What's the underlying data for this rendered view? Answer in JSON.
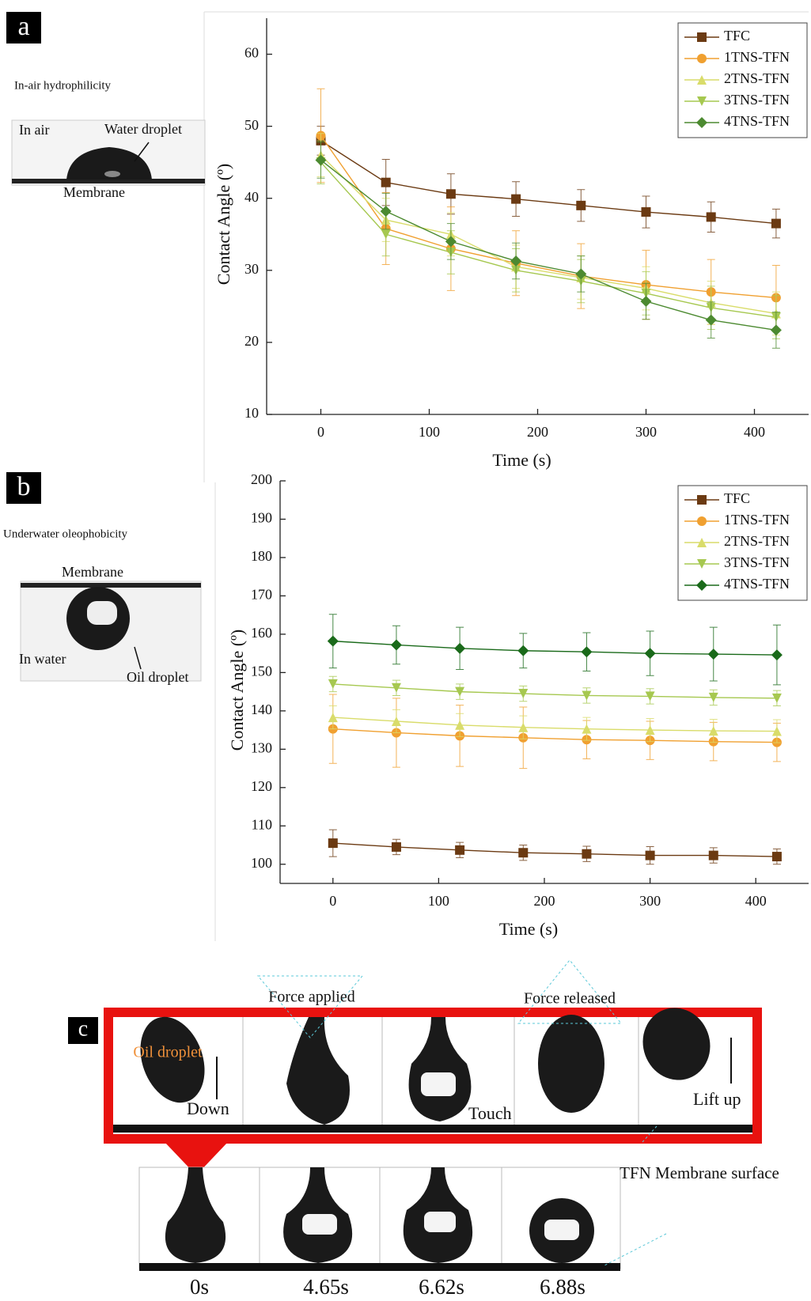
{
  "chart_data": [
    {
      "type": "line",
      "xlabel": "Time (s)",
      "ylabel": "Contact Angle (º)",
      "x": [
        0,
        60,
        120,
        180,
        240,
        300,
        360,
        420
      ],
      "xlim": [
        -50,
        450
      ],
      "xticks": [
        0,
        100,
        200,
        300,
        400
      ],
      "ylim": [
        10,
        65
      ],
      "yticks": [
        10,
        20,
        30,
        40,
        50,
        60
      ],
      "legend": "upper right",
      "grid": false,
      "series": [
        {
          "name": "TFC",
          "color": "#6b3a12",
          "marker": "square",
          "values": [
            48,
            42.2,
            40.6,
            39.9,
            39,
            38.1,
            37.4,
            36.5
          ],
          "errors": [
            2,
            3.2,
            2.8,
            2.4,
            2.2,
            2.2,
            2.1,
            2
          ]
        },
        {
          "name": "1TNS-TFN",
          "color": "#f0a030",
          "marker": "circle",
          "values": [
            48.7,
            35.8,
            33,
            31,
            29.2,
            28,
            27,
            26.2
          ],
          "errors": [
            6.5,
            5,
            5.8,
            4.5,
            4.5,
            4.8,
            4.5,
            4.5
          ]
        },
        {
          "name": "2TNS-TFN",
          "color": "#d9dc6a",
          "marker": "triangle",
          "values": [
            46,
            37,
            35,
            30.5,
            29,
            27.5,
            25.5,
            24
          ],
          "errors": [
            3,
            3,
            3,
            3,
            3,
            3,
            3,
            3
          ]
        },
        {
          "name": "3TNS-TFN",
          "color": "#a6c850",
          "marker": "triangle-down",
          "values": [
            45,
            35,
            32.5,
            30,
            28.5,
            26.8,
            24.8,
            23.5
          ],
          "errors": [
            3,
            3,
            3,
            3,
            3,
            3,
            3,
            3
          ]
        },
        {
          "name": "4TNS-TFN",
          "color": "#4c8a30",
          "marker": "diamond",
          "values": [
            45.3,
            38.2,
            34,
            31.3,
            29.5,
            25.7,
            23.1,
            21.7
          ],
          "errors": [
            2.5,
            2.5,
            2.5,
            2.5,
            2.5,
            2.5,
            2.5,
            2.5
          ]
        }
      ]
    },
    {
      "type": "line",
      "xlabel": "Time (s)",
      "ylabel": "Contact Angle (º)",
      "x": [
        0,
        60,
        120,
        180,
        240,
        300,
        360,
        420
      ],
      "xlim": [
        -50,
        450
      ],
      "xticks": [
        0,
        100,
        200,
        300,
        400
      ],
      "ylim": [
        95,
        200
      ],
      "yticks": [
        100,
        110,
        120,
        130,
        140,
        150,
        160,
        170,
        180,
        190,
        200
      ],
      "legend": "upper right",
      "grid": false,
      "series": [
        {
          "name": "TFC",
          "color": "#6b3a12",
          "marker": "square",
          "values": [
            105.5,
            104.5,
            103.7,
            103,
            102.7,
            102.3,
            102.3,
            102
          ],
          "errors": [
            3.5,
            2,
            2,
            2,
            2,
            2.3,
            2,
            2
          ]
        },
        {
          "name": "1TNS-TFN",
          "color": "#f0a030",
          "marker": "circle",
          "values": [
            135.3,
            134.3,
            133.5,
            133,
            132.5,
            132.3,
            132,
            131.8
          ],
          "errors": [
            9,
            9,
            8,
            8,
            5,
            5,
            5,
            5
          ]
        },
        {
          "name": "2TNS-TFN",
          "color": "#d9dc6a",
          "marker": "triangle",
          "values": [
            138.3,
            137.3,
            136.3,
            135.7,
            135.3,
            135,
            134.8,
            134.7
          ],
          "errors": [
            3,
            3,
            3,
            3,
            3,
            3,
            3,
            3
          ]
        },
        {
          "name": "3TNS-TFN",
          "color": "#a6c850",
          "marker": "triangle-down",
          "values": [
            147,
            146,
            145,
            144.5,
            144,
            143.8,
            143.5,
            143.3
          ],
          "errors": [
            2,
            2,
            2,
            2,
            2,
            2,
            2,
            2
          ]
        },
        {
          "name": "4TNS-TFN",
          "color": "#1a6a1a",
          "marker": "diamond",
          "values": [
            158.2,
            157.2,
            156.3,
            155.7,
            155.4,
            155,
            154.8,
            154.6
          ],
          "errors": [
            7,
            5,
            5.5,
            4.5,
            5,
            5.8,
            7,
            7.8
          ]
        }
      ]
    }
  ],
  "panels": {
    "a": {
      "label": "a",
      "caption": "In-air hydrophilicity",
      "in_air": "In air",
      "droplet": "Water droplet",
      "membrane": "Membrane"
    },
    "b": {
      "label": "b",
      "caption": "Underwater oleophobicity",
      "membrane": "Membrane",
      "in_water": "In water",
      "droplet": "Oil droplet"
    },
    "c": {
      "label": "c",
      "force_applied": "Force applied",
      "force_released": "Force released",
      "oil_droplet": "Oil droplet",
      "down": "Down",
      "touch": "Touch",
      "lift_up": "Lift up",
      "surface": "TFN Membrane surface",
      "times": [
        "0s",
        "4.65s",
        "6.62s",
        "6.88s"
      ]
    }
  }
}
